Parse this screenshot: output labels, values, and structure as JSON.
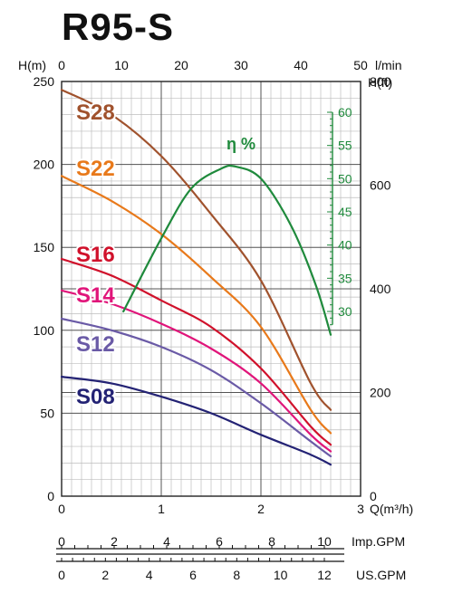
{
  "chart_data": {
    "type": "line",
    "title": "R95-S",
    "axes": {
      "q_bottom": {
        "label": "Q(m³/h)",
        "range": [
          0,
          3
        ],
        "ticks": [
          0,
          1,
          2,
          3
        ]
      },
      "l_min_top": {
        "label": "l/min",
        "range": [
          0,
          50
        ],
        "ticks": [
          0,
          10,
          20,
          30,
          40,
          50
        ]
      },
      "h_m_left": {
        "label": "H(m)",
        "range": [
          0,
          250
        ],
        "ticks": [
          0,
          50,
          100,
          150,
          200,
          250
        ]
      },
      "h_ft_right": {
        "label": "H(ft)",
        "range": [
          0,
          800
        ],
        "ticks": [
          0,
          200,
          400,
          600,
          800
        ]
      },
      "efficiency": {
        "label": "η %",
        "range": [
          30,
          60
        ],
        "ticks": [
          30,
          35,
          40,
          45,
          50,
          55,
          60
        ]
      },
      "imp_gpm": {
        "label": "Imp.GPM",
        "ticks": [
          0,
          2,
          4,
          6,
          8,
          10
        ]
      },
      "us_gpm": {
        "label": "US.GPM",
        "ticks": [
          0,
          2,
          4,
          6,
          8,
          10,
          12
        ]
      }
    },
    "grid": true,
    "series": [
      {
        "name": "S28",
        "color": "#a0522d",
        "x": [
          0,
          0.5,
          1.0,
          1.5,
          2.0,
          2.5,
          2.7
        ],
        "y": [
          245,
          230,
          205,
          170,
          130,
          68,
          52
        ]
      },
      {
        "name": "S22",
        "color": "#e8791a",
        "x": [
          0,
          0.5,
          1.0,
          1.5,
          2.0,
          2.5,
          2.7
        ],
        "y": [
          193,
          178,
          158,
          132,
          102,
          52,
          38
        ]
      },
      {
        "name": "S16",
        "color": "#d0112b",
        "x": [
          0,
          0.5,
          1.0,
          1.5,
          2.0,
          2.5,
          2.7
        ],
        "y": [
          143,
          133,
          118,
          102,
          77,
          42,
          31
        ]
      },
      {
        "name": "S14",
        "color": "#e0157a",
        "x": [
          0,
          0.5,
          1.0,
          1.5,
          2.0,
          2.5,
          2.7
        ],
        "y": [
          124,
          116,
          104,
          89,
          68,
          37,
          27
        ]
      },
      {
        "name": "S12",
        "color": "#6a5aa6",
        "x": [
          0,
          0.5,
          1.0,
          1.5,
          2.0,
          2.5,
          2.7
        ],
        "y": [
          107,
          100,
          90,
          76,
          56,
          33,
          24
        ]
      },
      {
        "name": "S08",
        "color": "#232274",
        "x": [
          0,
          0.5,
          1.0,
          1.5,
          2.0,
          2.5,
          2.7
        ],
        "y": [
          72,
          68,
          60,
          50,
          37,
          25,
          19
        ]
      },
      {
        "name": "η %",
        "color": "#1f8a3c",
        "axis": "efficiency",
        "x": [
          0.62,
          1.0,
          1.3,
          1.6,
          1.75,
          2.0,
          2.3,
          2.55,
          2.7
        ],
        "y": [
          30,
          41,
          48.5,
          51.5,
          51.8,
          50,
          43,
          34,
          26.5
        ]
      }
    ]
  }
}
